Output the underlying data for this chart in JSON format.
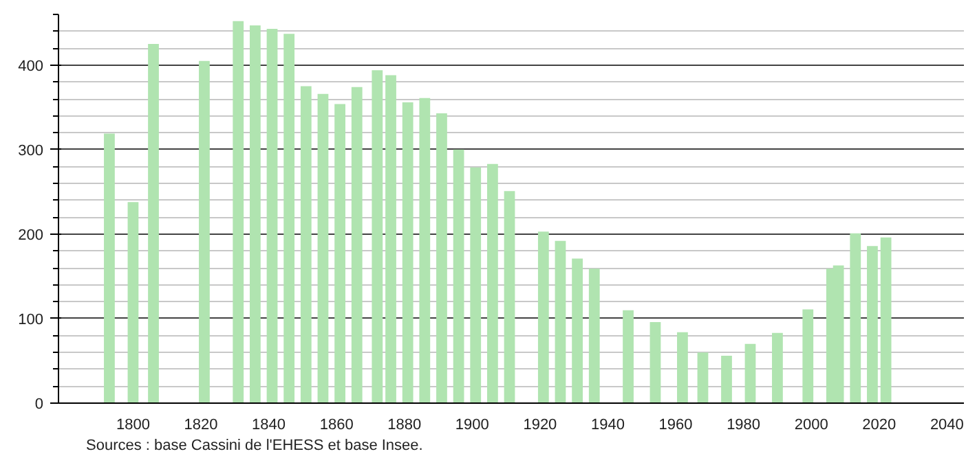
{
  "chart_data": {
    "type": "bar",
    "color": "#b0e4b0",
    "x": [
      1793,
      1800,
      1806,
      1821,
      1831,
      1836,
      1841,
      1846,
      1851,
      1856,
      1861,
      1866,
      1872,
      1876,
      1881,
      1886,
      1891,
      1896,
      1901,
      1906,
      1911,
      1921,
      1926,
      1931,
      1936,
      1946,
      1954,
      1962,
      1968,
      1975,
      1982,
      1990,
      1999,
      2006,
      2008,
      2013,
      2018,
      2022
    ],
    "values": [
      319,
      238,
      425,
      405,
      452,
      447,
      443,
      437,
      375,
      366,
      354,
      374,
      394,
      388,
      356,
      361,
      343,
      300,
      279,
      283,
      251,
      203,
      192,
      171,
      159,
      110,
      96,
      84,
      60,
      56,
      70,
      83,
      111,
      159,
      163,
      201,
      186,
      196
    ],
    "xlim": [
      1778,
      2045
    ],
    "xticks": [
      1800,
      1820,
      1840,
      1860,
      1880,
      1900,
      1920,
      1940,
      1960,
      1980,
      2000,
      2020,
      2040
    ],
    "ylim": [
      0,
      460
    ],
    "yticks": [
      0,
      100,
      200,
      300,
      400
    ],
    "grid": "y",
    "annotations": [
      "Sources : base Cassini de l'EHESS et base Insee."
    ]
  }
}
